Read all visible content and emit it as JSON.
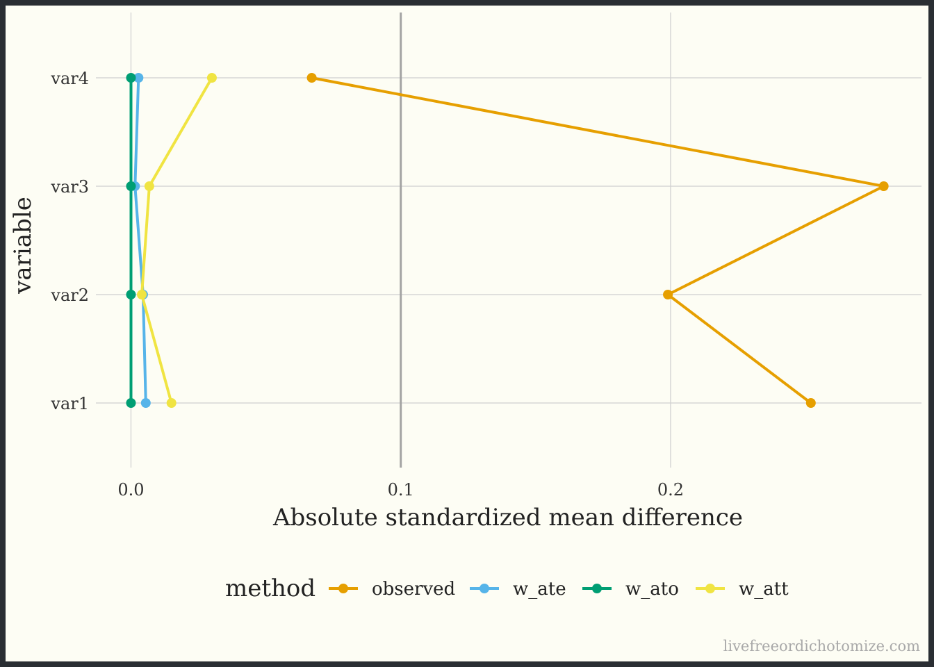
{
  "chart_data": {
    "type": "line",
    "xlabel": "Absolute standardized mean difference",
    "ylabel": "variable",
    "categories": [
      "var1",
      "var2",
      "var3",
      "var4"
    ],
    "xlim": [
      -0.013,
      0.293
    ],
    "xticks": [
      0.0,
      0.1,
      0.2
    ],
    "xtick_labels": [
      "0.0",
      "0.1",
      "0.2"
    ],
    "reference_line": 0.1,
    "grid": true,
    "legend": {
      "title": "method",
      "position": "bottom"
    },
    "series": [
      {
        "name": "observed",
        "color": "#E69F00",
        "values": [
          0.252,
          0.199,
          0.279,
          0.067
        ]
      },
      {
        "name": "w_ate",
        "color": "#56B4E9",
        "values": [
          0.0055,
          0.0045,
          0.0015,
          0.0028
        ]
      },
      {
        "name": "w_ato",
        "color": "#009E73",
        "values": [
          0.0,
          0.0,
          0.0,
          0.0
        ]
      },
      {
        "name": "w_att",
        "color": "#F0E442",
        "values": [
          0.015,
          0.004,
          0.0068,
          0.03
        ]
      }
    ]
  },
  "watermark": "livefreeordichotomize.com"
}
